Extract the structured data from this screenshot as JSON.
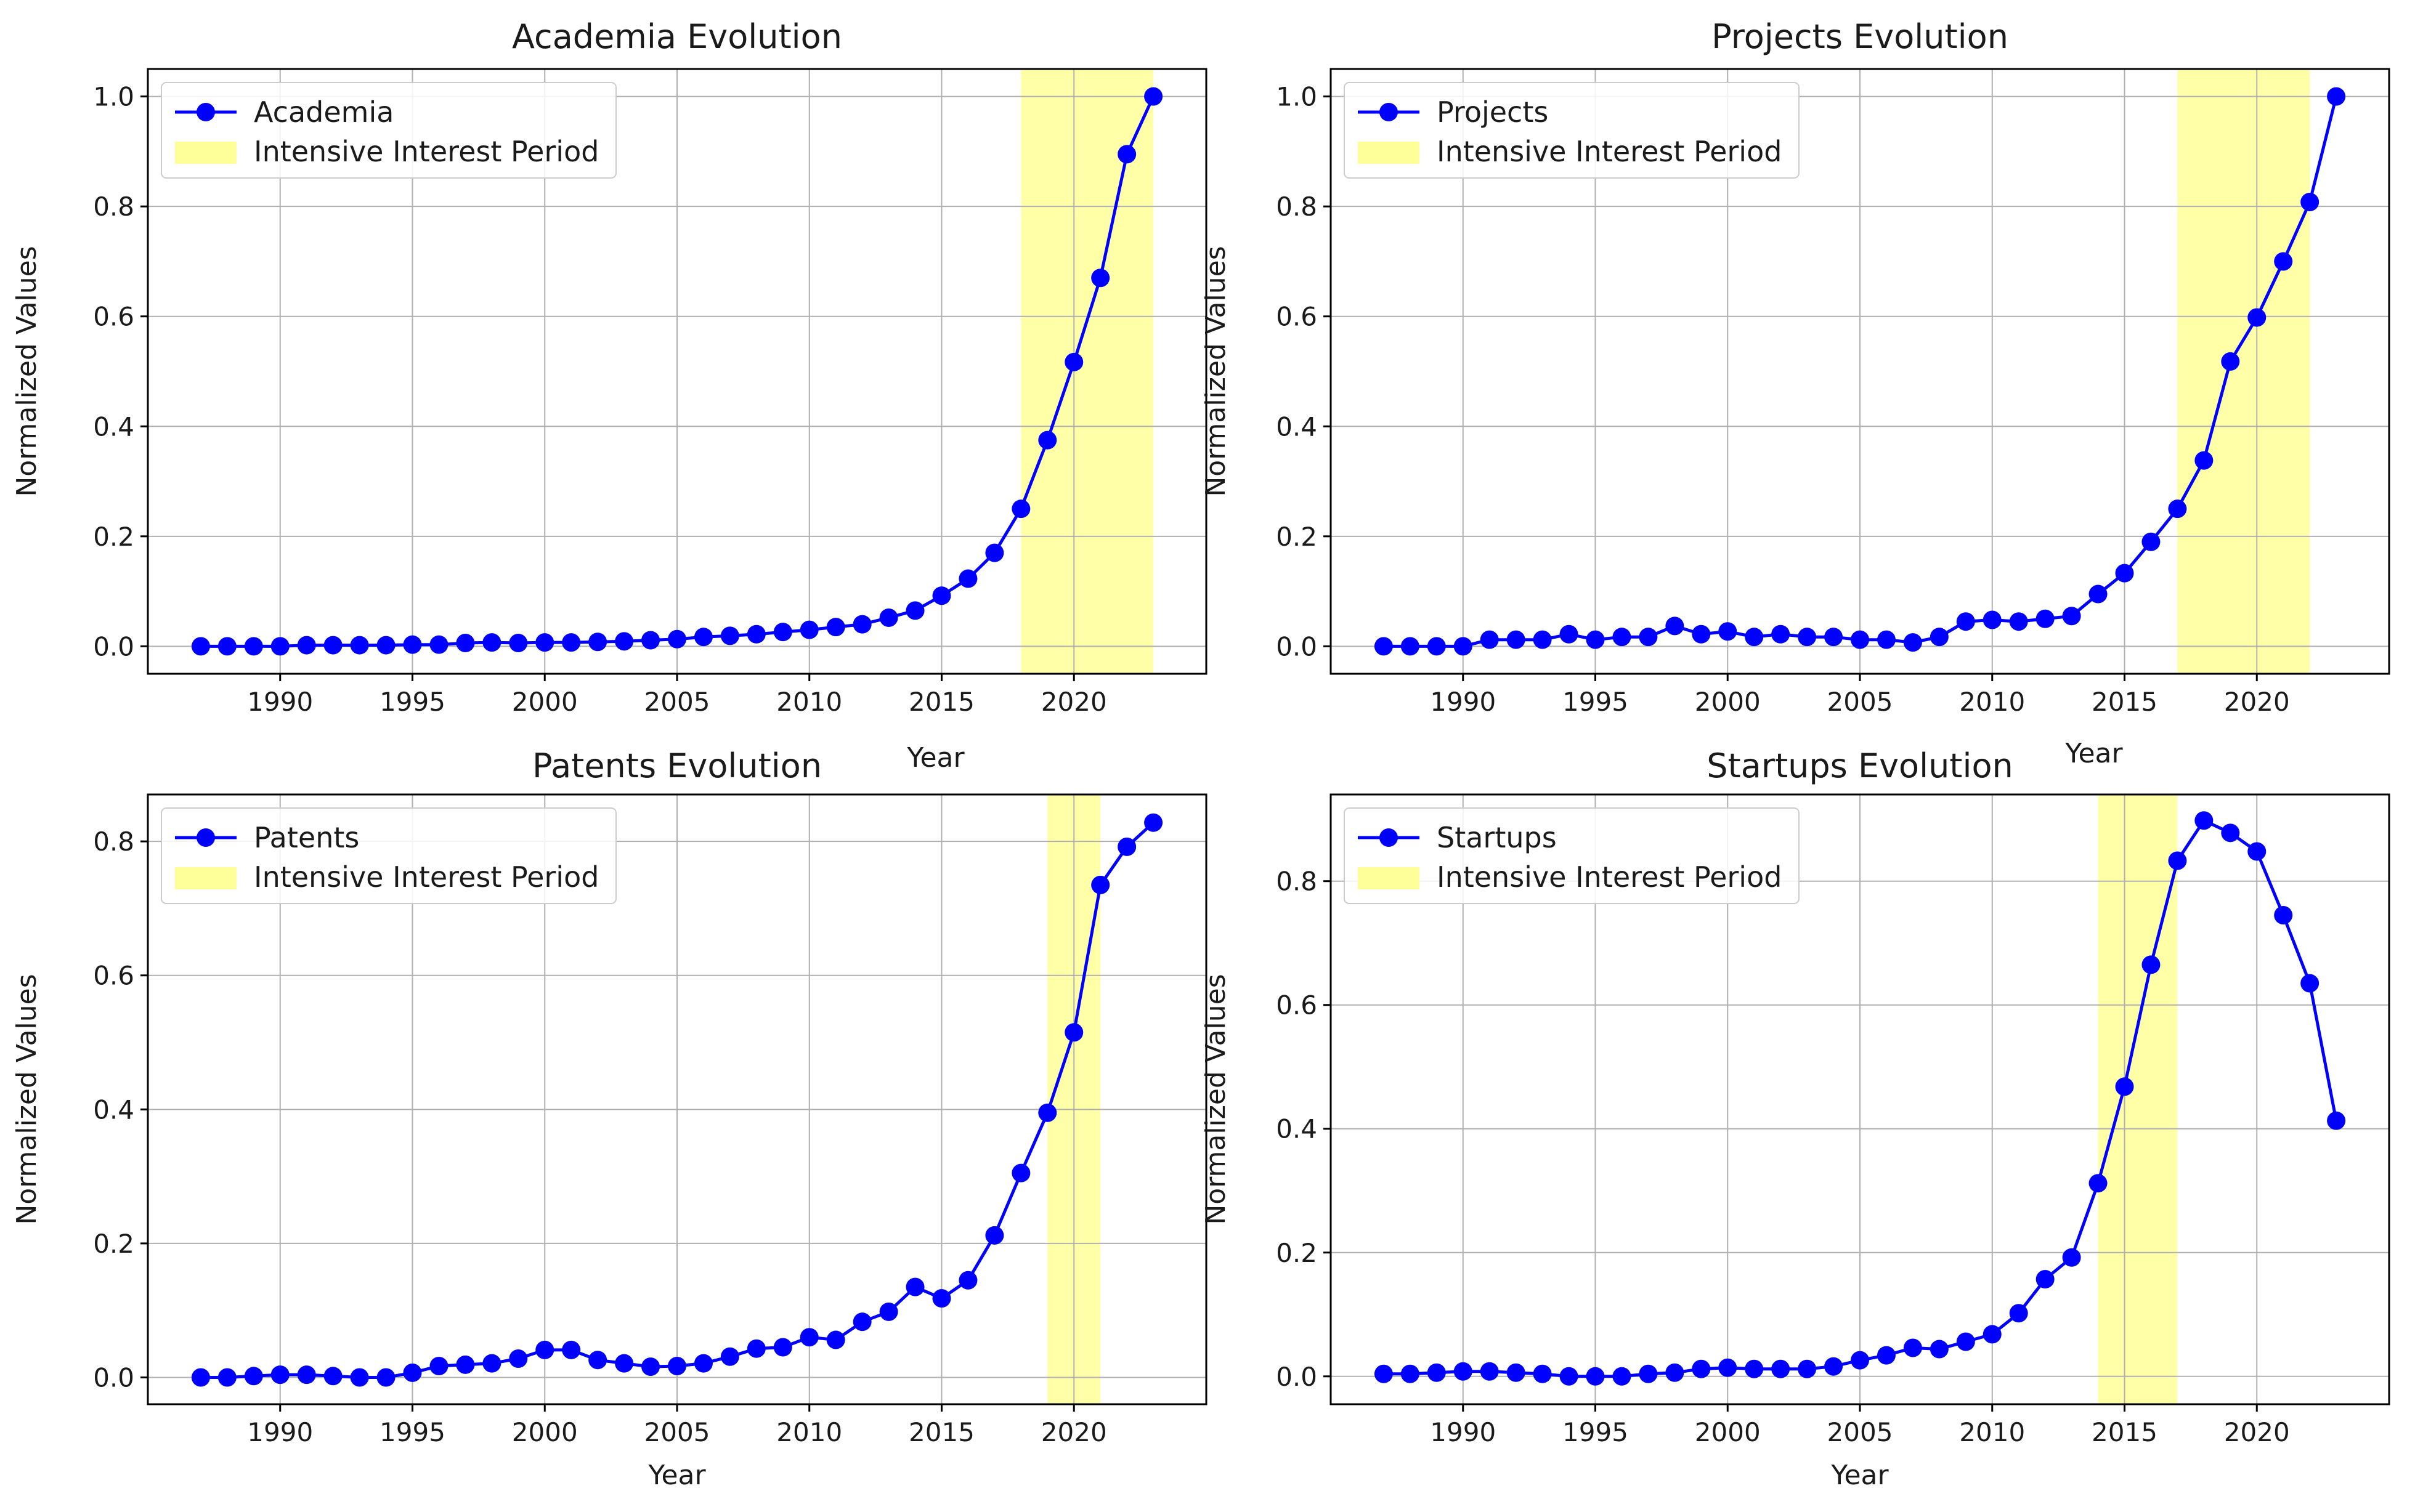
{
  "figure": {
    "accent_color": "#0000ff",
    "highlight_color": "#ffff99"
  },
  "chart_data": [
    {
      "type": "line",
      "title": "Academia Evolution",
      "xlabel": "Year",
      "ylabel": "Normalized Values",
      "xlim": [
        1985,
        2025
      ],
      "ylim": [
        -0.05,
        1.05
      ],
      "xticks": [
        1990,
        1995,
        2000,
        2005,
        2010,
        2015,
        2020
      ],
      "xtick_labels": [
        "1990",
        "1995",
        "2000",
        "2005",
        "2010",
        "2015",
        "2020"
      ],
      "yticks": [
        0.0,
        0.2,
        0.4,
        0.6,
        0.8,
        1.0
      ],
      "ytick_labels": [
        "0.0",
        "0.2",
        "0.4",
        "0.6",
        "0.8",
        "1.0"
      ],
      "grid": true,
      "legend": {
        "position": "top-left",
        "series_label": "Academia",
        "span_label": "Intensive Interest Period"
      },
      "highlight": {
        "start": 2018,
        "end": 2023
      },
      "x": [
        1987,
        1988,
        1989,
        1990,
        1991,
        1992,
        1993,
        1994,
        1995,
        1996,
        1997,
        1998,
        1999,
        2000,
        2001,
        2002,
        2003,
        2004,
        2005,
        2006,
        2007,
        2008,
        2009,
        2010,
        2011,
        2012,
        2013,
        2014,
        2015,
        2016,
        2017,
        2018,
        2019,
        2020,
        2021,
        2022,
        2023
      ],
      "values": [
        0.0,
        0.0,
        0.0,
        0.0,
        0.002,
        0.002,
        0.002,
        0.002,
        0.003,
        0.003,
        0.006,
        0.007,
        0.006,
        0.007,
        0.007,
        0.008,
        0.009,
        0.011,
        0.013,
        0.017,
        0.019,
        0.022,
        0.026,
        0.03,
        0.035,
        0.04,
        0.052,
        0.065,
        0.092,
        0.123,
        0.17,
        0.25,
        0.375,
        0.517,
        0.67,
        0.895,
        1.0
      ]
    },
    {
      "type": "line",
      "title": "Projects Evolution",
      "xlabel": "Year",
      "ylabel": "Normalized Values",
      "xlim": [
        1985,
        2025
      ],
      "ylim": [
        -0.05,
        1.05
      ],
      "xticks": [
        1990,
        1995,
        2000,
        2005,
        2010,
        2015,
        2020
      ],
      "xtick_labels": [
        "1990",
        "1995",
        "2000",
        "2005",
        "2010",
        "2015",
        "2020"
      ],
      "yticks": [
        0.0,
        0.2,
        0.4,
        0.6,
        0.8,
        1.0
      ],
      "ytick_labels": [
        "0.0",
        "0.2",
        "0.4",
        "0.6",
        "0.8",
        "1.0"
      ],
      "grid": true,
      "legend": {
        "position": "top-left",
        "series_label": "Projects",
        "span_label": "Intensive Interest Period"
      },
      "highlight": {
        "start": 2017,
        "end": 2022
      },
      "x": [
        1987,
        1988,
        1989,
        1990,
        1991,
        1992,
        1993,
        1994,
        1995,
        1996,
        1997,
        1998,
        1999,
        2000,
        2001,
        2002,
        2003,
        2004,
        2005,
        2006,
        2007,
        2008,
        2009,
        2010,
        2011,
        2012,
        2013,
        2014,
        2015,
        2016,
        2017,
        2018,
        2019,
        2020,
        2021,
        2022,
        2023
      ],
      "values": [
        0.0,
        0.0,
        0.0,
        0.0,
        0.012,
        0.012,
        0.012,
        0.022,
        0.012,
        0.017,
        0.017,
        0.037,
        0.022,
        0.027,
        0.017,
        0.022,
        0.017,
        0.017,
        0.012,
        0.012,
        0.007,
        0.017,
        0.045,
        0.048,
        0.045,
        0.05,
        0.055,
        0.095,
        0.133,
        0.19,
        0.25,
        0.338,
        0.518,
        0.598,
        0.7,
        0.808,
        1.0
      ]
    },
    {
      "type": "line",
      "title": "Patents Evolution",
      "xlabel": "Year",
      "ylabel": "Normalized Values",
      "xlim": [
        1985,
        2025
      ],
      "ylim": [
        -0.04,
        0.87
      ],
      "xticks": [
        1990,
        1995,
        2000,
        2005,
        2010,
        2015,
        2020
      ],
      "xtick_labels": [
        "1990",
        "1995",
        "2000",
        "2005",
        "2010",
        "2015",
        "2020"
      ],
      "yticks": [
        0.0,
        0.2,
        0.4,
        0.6,
        0.8
      ],
      "ytick_labels": [
        "0.0",
        "0.2",
        "0.4",
        "0.6",
        "0.8"
      ],
      "grid": true,
      "legend": {
        "position": "top-left",
        "series_label": "Patents",
        "span_label": "Intensive Interest Period"
      },
      "highlight": {
        "start": 2019,
        "end": 2021
      },
      "x": [
        1987,
        1988,
        1989,
        1990,
        1991,
        1992,
        1993,
        1994,
        1995,
        1996,
        1997,
        1998,
        1999,
        2000,
        2001,
        2002,
        2003,
        2004,
        2005,
        2006,
        2007,
        2008,
        2009,
        2010,
        2011,
        2012,
        2013,
        2014,
        2015,
        2016,
        2017,
        2018,
        2019,
        2020,
        2021,
        2022,
        2023
      ],
      "values": [
        0.0,
        0.0,
        0.002,
        0.004,
        0.004,
        0.002,
        0.0,
        0.0,
        0.007,
        0.017,
        0.019,
        0.021,
        0.028,
        0.041,
        0.041,
        0.026,
        0.021,
        0.016,
        0.017,
        0.021,
        0.031,
        0.043,
        0.045,
        0.06,
        0.056,
        0.083,
        0.098,
        0.135,
        0.118,
        0.145,
        0.212,
        0.305,
        0.395,
        0.515,
        0.735,
        0.792,
        0.828
      ]
    },
    {
      "type": "line",
      "title": "Startups Evolution",
      "xlabel": "Year",
      "ylabel": "Normalized Values",
      "xlim": [
        1985,
        2025
      ],
      "ylim": [
        -0.045,
        0.94
      ],
      "xticks": [
        1990,
        1995,
        2000,
        2005,
        2010,
        2015,
        2020
      ],
      "xtick_labels": [
        "1990",
        "1995",
        "2000",
        "2005",
        "2010",
        "2015",
        "2020"
      ],
      "yticks": [
        0.0,
        0.2,
        0.4,
        0.6,
        0.8
      ],
      "ytick_labels": [
        "0.0",
        "0.2",
        "0.4",
        "0.6",
        "0.8"
      ],
      "grid": true,
      "legend": {
        "position": "top-left",
        "series_label": "Startups",
        "span_label": "Intensive Interest Period"
      },
      "highlight": {
        "start": 2014,
        "end": 2017
      },
      "x": [
        1987,
        1988,
        1989,
        1990,
        1991,
        1992,
        1993,
        1994,
        1995,
        1996,
        1997,
        1998,
        1999,
        2000,
        2001,
        2002,
        2003,
        2004,
        2005,
        2006,
        2007,
        2008,
        2009,
        2010,
        2011,
        2012,
        2013,
        2014,
        2015,
        2016,
        2017,
        2018,
        2019,
        2020,
        2021,
        2022,
        2023
      ],
      "values": [
        0.004,
        0.004,
        0.006,
        0.008,
        0.008,
        0.006,
        0.004,
        0.0,
        0.0,
        0.0,
        0.004,
        0.006,
        0.012,
        0.014,
        0.012,
        0.012,
        0.012,
        0.016,
        0.026,
        0.034,
        0.046,
        0.044,
        0.056,
        0.068,
        0.102,
        0.157,
        0.192,
        0.312,
        0.468,
        0.665,
        0.833,
        0.898,
        0.878,
        0.848,
        0.745,
        0.635,
        0.413
      ]
    }
  ]
}
